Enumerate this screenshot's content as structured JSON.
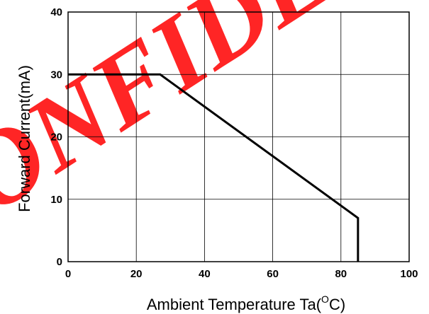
{
  "watermark": {
    "text": "CONFIDENTIAL",
    "color": "#ff0000"
  },
  "chart_data": {
    "type": "line",
    "title": "",
    "xlabel_main": "Ambient Temperature Ta(",
    "xlabel_sup": "O",
    "xlabel_end": "C)",
    "ylabel": "Forward Current(mA)",
    "xlim": [
      0,
      100
    ],
    "ylim": [
      0,
      40
    ],
    "xticks": [
      0,
      20,
      40,
      60,
      80,
      100
    ],
    "yticks": [
      0,
      10,
      20,
      30,
      40
    ],
    "grid": true,
    "line_color": "#000000",
    "series": [
      {
        "x": [
          0,
          27,
          85,
          85
        ],
        "y": [
          30,
          30,
          7,
          0
        ]
      }
    ]
  }
}
